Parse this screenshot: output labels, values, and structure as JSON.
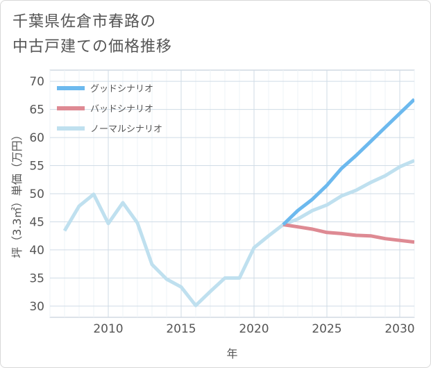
{
  "title_lines": [
    "千葉県佐倉市春路の",
    "中古戸建ての価格推移"
  ],
  "chart_data": {
    "type": "line",
    "title": "千葉県佐倉市春路の中古戸建ての価格推移",
    "xlabel": "年",
    "ylabel": "坪（3.3㎡）単価（万円）",
    "xlim": [
      2006,
      2031
    ],
    "ylim": [
      28,
      72
    ],
    "x_ticks": [
      2010,
      2015,
      2020,
      2025,
      2030
    ],
    "y_ticks": [
      30,
      35,
      40,
      45,
      50,
      55,
      60,
      65,
      70
    ],
    "grid": true,
    "legend_position": "top-left",
    "series": [
      {
        "name": "グッドシナリオ",
        "color": "#6cb9ee",
        "x": [
          2022,
          2023,
          2024,
          2025,
          2026,
          2027,
          2028,
          2029,
          2030,
          2031
        ],
        "y": [
          44.5,
          47.0,
          49.0,
          51.5,
          54.5,
          56.8,
          59.3,
          61.8,
          64.3,
          66.8
        ]
      },
      {
        "name": "バッドシナリオ",
        "color": "#de8a93",
        "x": [
          2022,
          2023,
          2024,
          2025,
          2026,
          2027,
          2028,
          2029,
          2030,
          2031
        ],
        "y": [
          44.5,
          44.1,
          43.7,
          43.1,
          42.9,
          42.6,
          42.5,
          42.0,
          41.7,
          41.4
        ]
      },
      {
        "name": "ノーマルシナリオ",
        "color": "#bfe0ef",
        "x": [
          2007,
          2008,
          2009,
          2010,
          2011,
          2012,
          2013,
          2014,
          2015,
          2016,
          2017,
          2018,
          2019,
          2020,
          2021,
          2022,
          2023,
          2024,
          2025,
          2026,
          2027,
          2028,
          2029,
          2030,
          2031
        ],
        "y": [
          43.4,
          47.8,
          49.9,
          44.7,
          48.4,
          44.8,
          37.4,
          34.8,
          33.4,
          30.1,
          32.6,
          35.0,
          35.0,
          40.4,
          42.5,
          44.5,
          45.5,
          47.0,
          48.0,
          49.6,
          50.6,
          52.0,
          53.2,
          54.8,
          55.9
        ]
      }
    ]
  }
}
